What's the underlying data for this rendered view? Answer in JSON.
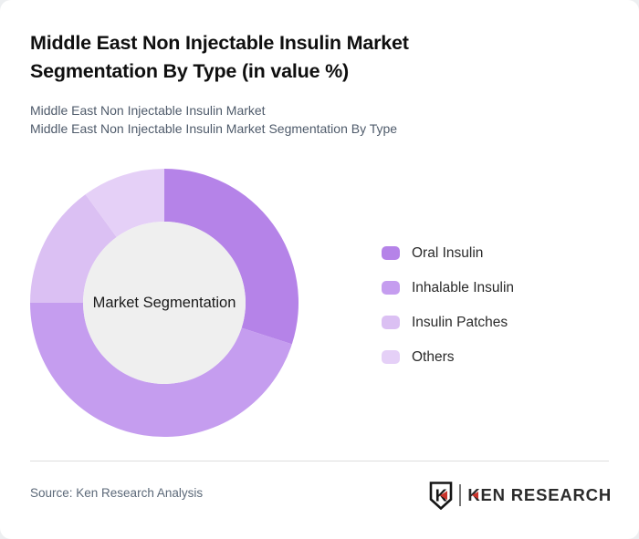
{
  "header": {
    "title": "Middle East Non Injectable Insulin Market Segmentation By Type (in value %)",
    "subtitle_line1": "Middle East Non Injectable Insulin Market",
    "subtitle_line2": "Middle East Non Injectable Insulin Market Segmentation By Type"
  },
  "chart_data": {
    "type": "pie",
    "variant": "donut",
    "title": "Middle East Non Injectable Insulin Market Segmentation By Type (in value %)",
    "unit": "% of market value",
    "center_label": "Market Segmentation",
    "categories": [
      "Oral Insulin",
      "Inhalable Insulin",
      "Insulin Patches",
      "Others"
    ],
    "values": [
      30,
      45,
      15,
      10
    ],
    "colors": [
      "#b583e8",
      "#c59def",
      "#dbc0f3",
      "#e5d0f7"
    ],
    "hole_color": "#efefef",
    "start_angle_deg": 0,
    "direction": "clockwise",
    "legend_position": "right"
  },
  "footer": {
    "source": "Source: Ken Research Analysis",
    "logo": {
      "emblem_letter": "K",
      "wordmark": "KEN RESEARCH",
      "accent_color": "#c9342c",
      "text_color": "#2b2b2b"
    }
  }
}
